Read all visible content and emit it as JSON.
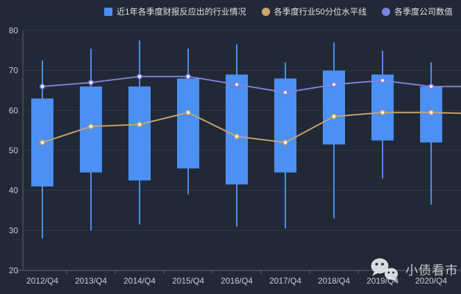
{
  "watermark": {
    "text": "小债看市",
    "icon": "wechat-logo"
  },
  "colors": {
    "background": "#212936",
    "grid": "#2e3a4b",
    "axis": "#5a6477",
    "tick_label": "#c9cfdb",
    "legend_text": "#dde1e8",
    "candle": "#4b90f2",
    "median_line": "#c9a36f",
    "company_line": "#7f82dc",
    "dot_fill": "#ffffff"
  },
  "chart_data": {
    "type": "candlestick",
    "title": "",
    "xlabel": "",
    "ylabel": "",
    "categories": [
      "2012/Q4",
      "2013/Q4",
      "2014/Q4",
      "2015/Q4",
      "2016/Q4",
      "2017/Q4",
      "2018/Q4",
      "2019/Q4",
      "2020/Q4"
    ],
    "ylim": [
      20,
      80
    ],
    "y_ticks": [
      20,
      30,
      40,
      50,
      60,
      70,
      80
    ],
    "grid": true,
    "legend_position": "top-right",
    "series": [
      {
        "name": "近1年各季度财报反应出的行业情况",
        "type": "candlestick",
        "marker": "square",
        "color": "#4b90f2",
        "values_format": "[low, boxBottom, boxTop, high]",
        "values": [
          [
            28,
            41,
            63,
            72.5
          ],
          [
            30,
            44.5,
            66,
            75.5
          ],
          [
            31.5,
            42.5,
            66,
            77.5
          ],
          [
            39,
            45.5,
            68,
            75.5
          ],
          [
            31,
            41.5,
            69,
            76.5
          ],
          [
            30.5,
            44.5,
            68,
            72
          ],
          [
            33,
            51.5,
            70,
            77
          ],
          [
            43,
            52.5,
            69,
            75
          ],
          [
            36.5,
            52,
            66,
            72
          ]
        ]
      },
      {
        "name": "各季度行业50分位水平线",
        "type": "line",
        "marker": "circle",
        "color": "#c9a36f",
        "values": [
          52,
          56,
          56.5,
          59.5,
          53.5,
          52,
          58.5,
          59.5,
          59.5
        ],
        "extends_to_right_edge_value": 59.3
      },
      {
        "name": "各季度公司数值",
        "type": "line",
        "marker": "circle",
        "color": "#7f82dc",
        "values": [
          66,
          67,
          68.5,
          68.5,
          66.5,
          64.5,
          66.5,
          67.5,
          66
        ],
        "extends_to_right_edge_value": 66
      }
    ]
  }
}
